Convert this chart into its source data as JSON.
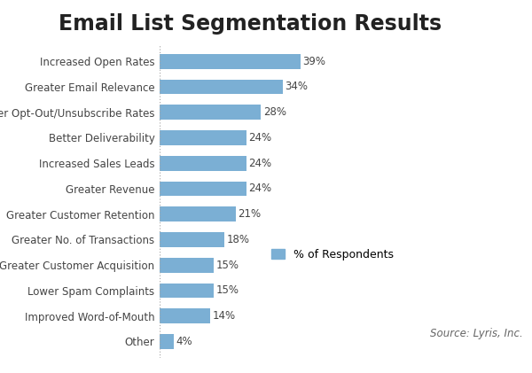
{
  "title": "Email List Segmentation Results",
  "categories": [
    "Increased Open Rates",
    "Greater Email Relevance",
    "Lower Opt-Out/Unsubscribe Rates",
    "Better Deliverability",
    "Increased Sales Leads",
    "Greater Revenue",
    "Greater Customer Retention",
    "Greater No. of Transactions",
    "Greater Customer Acquisition",
    "Lower Spam Complaints",
    "Improved Word-of-Mouth",
    "Other"
  ],
  "values": [
    39,
    34,
    28,
    24,
    24,
    24,
    21,
    18,
    15,
    15,
    14,
    4
  ],
  "bar_color": "#7BAFD4",
  "background_color": "#ffffff",
  "title_fontsize": 17,
  "label_fontsize": 8.5,
  "value_fontsize": 8.5,
  "legend_label": "% of Respondents",
  "source_text": "Source: Lyris, Inc.",
  "xlim": [
    0,
    50
  ]
}
